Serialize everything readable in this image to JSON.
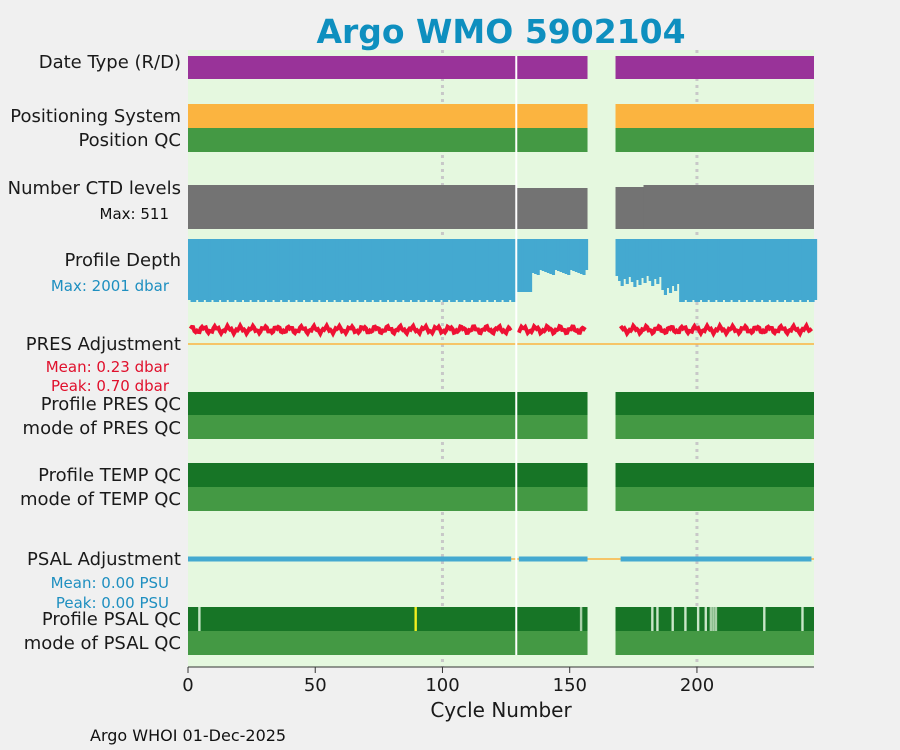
{
  "chart_data": {
    "type": "timeline",
    "title": "Argo WMO 5902104",
    "xlabel": "Cycle Number",
    "xlim": [
      0,
      246
    ],
    "xticks": [
      0,
      50,
      100,
      150,
      200
    ],
    "grid_x": [
      100,
      200
    ],
    "cycle_break": 129,
    "gap": [
      157,
      168
    ],
    "rows": [
      {
        "key": "date_type",
        "label": "Date Type (R/D)",
        "color": "#993399"
      },
      {
        "key": "positioning_system",
        "label": "Positioning System",
        "color": "#fbb440"
      },
      {
        "key": "position_qc",
        "label": "Position QC",
        "color": "#449944"
      },
      {
        "key": "num_ctd_levels",
        "label": "Number CTD levels",
        "sub": "Max: 511",
        "color": "#737373",
        "sub_color": "#111111"
      },
      {
        "key": "profile_depth",
        "label": "Profile Depth",
        "sub": "Max: 2001 dbar",
        "color": "#44a9d0",
        "sub_color": "#1e8fc0"
      },
      {
        "key": "pres_adjustment",
        "label": "PRES Adjustment",
        "sub": "Mean: 0.23 dbar",
        "sub2": "Peak: 0.70 dbar",
        "color": "#ee1133",
        "sub_color": "#e0102c"
      },
      {
        "key": "profile_pres_qc",
        "label": "Profile PRES QC",
        "color": "#177526"
      },
      {
        "key": "mode_pres_qc",
        "label": "mode of PRES QC",
        "color": "#449944"
      },
      {
        "key": "profile_temp_qc",
        "label": "Profile TEMP QC",
        "color": "#177526"
      },
      {
        "key": "mode_temp_qc",
        "label": "mode of TEMP QC",
        "color": "#449944"
      },
      {
        "key": "psal_adjustment",
        "label": "PSAL Adjustment",
        "sub": "Mean: 0.00 PSU",
        "sub2": "Peak: 0.00 PSU",
        "color": "#44a9d0",
        "sub_color": "#1e8fc0"
      },
      {
        "key": "profile_psal_qc",
        "label": "Profile PSAL QC",
        "color": "#177526"
      },
      {
        "key": "mode_psal_qc",
        "label": "mode of PSAL QC",
        "color": "#449944"
      }
    ],
    "pres_mean": 0.23,
    "pres_peak": 0.7,
    "depth_max": 2001,
    "ctd_max": 511,
    "psal_qc_flags": [
      {
        "cycle": 4,
        "color": "#c8e6c8"
      },
      {
        "cycle": 89,
        "color": "#f0f020"
      },
      {
        "cycle": 154,
        "color": "#a8cfa8"
      },
      {
        "cycle": 182,
        "color": "#c8e6c8"
      },
      {
        "cycle": 184,
        "color": "#c8e6c8"
      },
      {
        "cycle": 190,
        "color": "#c8e6c8"
      },
      {
        "cycle": 195,
        "color": "#c8e6c8"
      },
      {
        "cycle": 200,
        "color": "#c8e6c8"
      },
      {
        "cycle": 203,
        "color": "#c8e6c8"
      },
      {
        "cycle": 205,
        "color": "#a8cfa8"
      },
      {
        "cycle": 206,
        "color": "#a8cfa8"
      },
      {
        "cycle": 207,
        "color": "#a8cfa8"
      },
      {
        "cycle": 226,
        "color": "#c8e6c8"
      },
      {
        "cycle": 241,
        "color": "#c8e6c8"
      }
    ],
    "footer": "Argo WHOI 01-Dec-2025"
  }
}
